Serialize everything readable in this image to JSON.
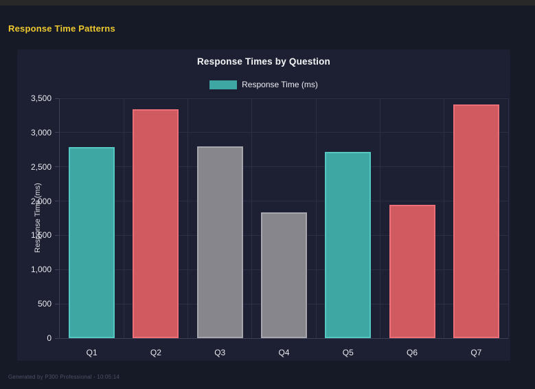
{
  "window": {
    "topbar_color": "#282828"
  },
  "page": {
    "heading": "Response Time Patterns",
    "heading_color": "#edc92f",
    "background": "#161a27",
    "footer": "Generated by P300 Professional - 10:05:14"
  },
  "chart_data": {
    "type": "bar",
    "title": "Response Times by Question",
    "xlabel": "",
    "ylabel": "Response Time (ms)",
    "legend_position": "top",
    "legend": [
      {
        "label": "Response Time (ms)",
        "color": "#3fa7a3"
      }
    ],
    "categories": [
      "Q1",
      "Q2",
      "Q3",
      "Q4",
      "Q5",
      "Q6",
      "Q7"
    ],
    "series": [
      {
        "name": "Response Time (ms)",
        "values": [
          2790,
          3340,
          2800,
          1840,
          2720,
          1950,
          3410
        ]
      }
    ],
    "bar_color_keys": [
      "teal",
      "red",
      "gray",
      "gray",
      "teal",
      "red",
      "red"
    ],
    "palette": {
      "teal": {
        "fill": "#3fa7a3",
        "border": "#55c8c3"
      },
      "red": {
        "fill": "#cf5a60",
        "border": "#ef6f79"
      },
      "gray": {
        "fill": "#87868c",
        "border": "#a6a6ac"
      }
    },
    "ylim": [
      0,
      3500
    ],
    "ytick_step": 500,
    "yticks": [
      "0",
      "500",
      "1,000",
      "1,500",
      "2,000",
      "2,500",
      "3,000",
      "3,500"
    ],
    "grid": true,
    "panel_background": "#1d2032"
  }
}
